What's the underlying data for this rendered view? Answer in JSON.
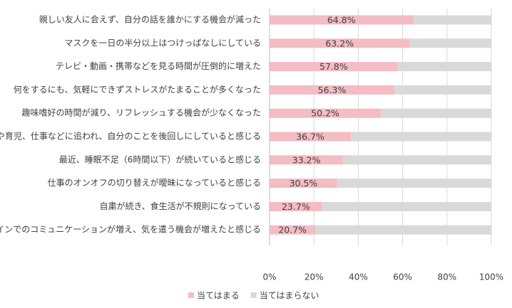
{
  "chart_data": {
    "type": "stacked-barh",
    "categories": [
      "親しい友人に会えず、自分の話を誰かにする機会が減った",
      "マスクを一日の半分以上はつけっぱなしにしている",
      "テレビ・動画・携帯などを見る時間が圧倒的に増えた",
      "何をするにも、気軽にできずストレスがたまることが多くなった",
      "趣味嗜好の時間が減り、リフレッシュする機会が少なくなった",
      "家事や育児、仕事などに追われ、自分のことを後回しにしていると感じる",
      "最近、睡眠不足（6時間以下）が続いていると感じる",
      "仕事のオンオフの切り替えが曖昧になっていると感じる",
      "自粛が続き、食生活が不規則になっている",
      "オンラインでのコミュニケーションが増え、気を遣う機会が増えたと感じる"
    ],
    "series": [
      {
        "name": "当てはまる",
        "color": "#f4bcc3",
        "values": [
          64.8,
          63.2,
          57.8,
          56.3,
          50.2,
          36.7,
          33.2,
          30.5,
          23.7,
          20.7
        ],
        "value_labels": [
          "64.8%",
          "63.2%",
          "57.8%",
          "56.3%",
          "50.2%",
          "36.7%",
          "33.2%",
          "30.5%",
          "23.7%",
          "20.7%"
        ]
      },
      {
        "name": "当てはまらない",
        "color": "#d9d9d9",
        "values": [
          35.2,
          36.8,
          42.2,
          43.7,
          49.8,
          63.3,
          66.8,
          69.5,
          76.3,
          79.3
        ]
      }
    ],
    "xlim": [
      0,
      100
    ],
    "xticks": [
      {
        "value": 0,
        "label": "0%"
      },
      {
        "value": 20,
        "label": "20%"
      },
      {
        "value": 40,
        "label": "40%"
      },
      {
        "value": 60,
        "label": "60%"
      },
      {
        "value": 80,
        "label": "80%"
      },
      {
        "value": 100,
        "label": "100%"
      }
    ],
    "grid": true
  }
}
